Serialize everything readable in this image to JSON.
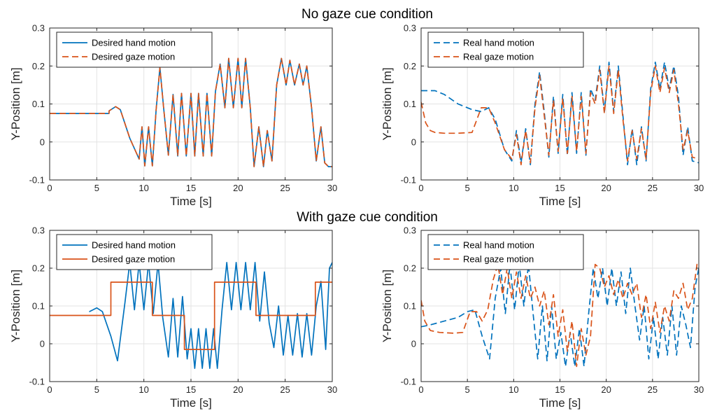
{
  "section_titles": {
    "top": "No gaze cue condition",
    "bottom": "With gaze cue condition"
  },
  "colors": {
    "hand": "#0072BD",
    "gaze": "#D95319"
  },
  "chart_data": [
    {
      "type": "line",
      "section": "top",
      "xlabel": "Time [s]",
      "ylabel": "Y-Position [m]",
      "xlim": [
        0,
        30
      ],
      "ylim": [
        -0.1,
        0.3
      ],
      "xticks": [
        "0",
        "5",
        "10",
        "15",
        "20",
        "25",
        "30"
      ],
      "yticks": [
        "-0.1",
        "0",
        "0.1",
        "0.2",
        "0.3"
      ],
      "grid": true,
      "legend_position": "top-left",
      "series": [
        {
          "name": "Desired hand motion",
          "style": "solid",
          "color": "#0072BD",
          "x": [
            0,
            6.3,
            6.31,
            7.0,
            7.5,
            8.5,
            9.5,
            9.8,
            10.1,
            10.5,
            10.9,
            11.3,
            11.7,
            12.1,
            12.6,
            13.1,
            13.6,
            14.0,
            14.5,
            15.0,
            15.4,
            15.8,
            16.3,
            16.7,
            17.2,
            17.6,
            18.1,
            18.6,
            19.0,
            19.5,
            20.0,
            20.4,
            20.8,
            21.3,
            21.7,
            22.2,
            22.7,
            23.1,
            23.6,
            24.1,
            24.6,
            25.1,
            25.5,
            26.0,
            26.5,
            26.9,
            27.3,
            27.8,
            28.3,
            28.8,
            29.2,
            29.6,
            30
          ],
          "y": [
            0.075,
            0.075,
            0.082,
            0.093,
            0.085,
            0.01,
            -0.045,
            0.04,
            -0.063,
            0.04,
            -0.063,
            0.085,
            0.196,
            0.09,
            -0.035,
            0.125,
            -0.037,
            0.128,
            -0.037,
            0.128,
            -0.037,
            0.128,
            -0.037,
            0.128,
            -0.037,
            0.133,
            0.205,
            0.09,
            0.22,
            0.09,
            0.22,
            0.09,
            0.22,
            0.09,
            -0.065,
            0.04,
            -0.065,
            0.03,
            -0.05,
            0.15,
            0.22,
            0.15,
            0.215,
            0.15,
            0.205,
            0.15,
            0.2,
            0.09,
            -0.05,
            0.04,
            -0.055,
            -0.065,
            -0.065
          ]
        },
        {
          "name": "Desired gaze motion",
          "style": "dashed",
          "color": "#D95319",
          "x": [
            0,
            6.3,
            6.31,
            7.0,
            7.5,
            8.5,
            9.5,
            9.8,
            10.1,
            10.5,
            10.9,
            11.3,
            11.7,
            12.1,
            12.6,
            13.1,
            13.6,
            14.0,
            14.5,
            15.0,
            15.4,
            15.8,
            16.3,
            16.7,
            17.2,
            17.6,
            18.1,
            18.6,
            19.0,
            19.5,
            20.0,
            20.4,
            20.8,
            21.3,
            21.7,
            22.2,
            22.7,
            23.1,
            23.6,
            24.1,
            24.6,
            25.1,
            25.5,
            26.0,
            26.5,
            26.9,
            27.3,
            27.8,
            28.3,
            28.8,
            29.2,
            29.6,
            30
          ],
          "y": [
            0.075,
            0.075,
            0.082,
            0.093,
            0.085,
            0.01,
            -0.045,
            0.04,
            -0.063,
            0.04,
            -0.063,
            0.085,
            0.196,
            0.09,
            -0.035,
            0.125,
            -0.037,
            0.128,
            -0.037,
            0.128,
            -0.037,
            0.128,
            -0.037,
            0.128,
            -0.037,
            0.133,
            0.205,
            0.09,
            0.22,
            0.09,
            0.22,
            0.09,
            0.22,
            0.09,
            -0.065,
            0.04,
            -0.065,
            0.03,
            -0.05,
            0.15,
            0.22,
            0.15,
            0.215,
            0.15,
            0.205,
            0.15,
            0.2,
            0.09,
            -0.05,
            0.04,
            -0.055,
            -0.065,
            -0.065
          ]
        }
      ]
    },
    {
      "type": "line",
      "section": "top",
      "xlabel": "Time [s]",
      "ylabel": "Y-Position [m]",
      "xlim": [
        0,
        30
      ],
      "ylim": [
        -0.1,
        0.3
      ],
      "xticks": [
        "0",
        "5",
        "10",
        "15",
        "20",
        "25",
        "30"
      ],
      "yticks": [
        "-0.1",
        "0",
        "0.1",
        "0.2",
        "0.3"
      ],
      "grid": true,
      "legend_position": "top-left",
      "series": [
        {
          "name": "Real hand motion",
          "style": "dashed",
          "color": "#0072BD",
          "x": [
            0,
            1.5,
            2.5,
            4.0,
            5.5,
            6.5,
            7.3,
            8.0,
            9.0,
            9.8,
            10.3,
            10.8,
            11.3,
            11.8,
            12.3,
            12.8,
            13.3,
            13.8,
            14.3,
            14.8,
            15.3,
            15.8,
            16.3,
            16.8,
            17.3,
            17.8,
            18.3,
            18.8,
            19.3,
            19.8,
            20.3,
            20.8,
            21.3,
            21.8,
            22.3,
            22.8,
            23.3,
            23.8,
            24.3,
            24.8,
            25.3,
            25.8,
            26.3,
            26.8,
            27.3,
            27.8,
            28.3,
            28.8,
            29.3,
            30
          ],
          "y": [
            0.135,
            0.135,
            0.125,
            0.1,
            0.085,
            0.08,
            0.09,
            0.06,
            -0.02,
            -0.05,
            0.03,
            -0.055,
            0.035,
            -0.06,
            0.1,
            0.185,
            0.08,
            -0.04,
            0.12,
            -0.03,
            0.125,
            -0.035,
            0.13,
            -0.03,
            0.13,
            -0.035,
            0.14,
            0.11,
            0.2,
            0.08,
            0.21,
            0.08,
            0.2,
            0.07,
            -0.06,
            0.035,
            -0.06,
            0.04,
            -0.05,
            0.14,
            0.21,
            0.14,
            0.21,
            0.14,
            0.2,
            0.12,
            -0.035,
            0.04,
            -0.05,
            -0.055
          ]
        },
        {
          "name": "Real gaze motion",
          "style": "dashed",
          "color": "#D95319",
          "x": [
            0,
            0.5,
            1.0,
            1.5,
            2.5,
            4.0,
            5.5,
            6.5,
            7.3,
            8.0,
            9.0,
            9.8,
            10.3,
            10.8,
            11.3,
            11.8,
            12.3,
            12.8,
            13.3,
            13.8,
            14.3,
            14.8,
            15.3,
            15.8,
            16.3,
            16.8,
            17.3,
            17.8,
            18.3,
            18.8,
            19.3,
            19.8,
            20.3,
            20.8,
            21.3,
            21.8,
            22.3,
            22.8,
            23.3,
            23.8,
            24.3,
            24.8,
            25.3,
            25.8,
            26.3,
            26.8,
            27.3,
            27.8,
            28.3,
            28.8,
            29.3,
            30
          ],
          "y": [
            0.105,
            0.05,
            0.03,
            0.025,
            0.023,
            0.023,
            0.025,
            0.09,
            0.09,
            0.05,
            -0.02,
            -0.045,
            0.02,
            -0.06,
            0.03,
            -0.055,
            0.09,
            0.175,
            0.07,
            -0.035,
            0.11,
            -0.025,
            0.115,
            -0.03,
            0.12,
            -0.025,
            0.12,
            -0.03,
            0.13,
            0.1,
            0.19,
            0.075,
            0.2,
            0.075,
            0.19,
            0.06,
            -0.05,
            0.03,
            -0.045,
            0.035,
            -0.045,
            0.13,
            0.2,
            0.13,
            0.195,
            0.13,
            0.19,
            0.1,
            -0.02,
            0.03,
            -0.04,
            -0.045
          ]
        }
      ]
    },
    {
      "type": "line",
      "section": "bottom",
      "xlabel": "Time [s]",
      "ylabel": "Y-Position [m]",
      "xlim": [
        0,
        30
      ],
      "ylim": [
        -0.1,
        0.3
      ],
      "xticks": [
        "0",
        "5",
        "10",
        "15",
        "20",
        "25",
        "30"
      ],
      "yticks": [
        "-0.1",
        "0",
        "0.1",
        "0.2",
        "0.3"
      ],
      "grid": true,
      "legend_position": "top-left",
      "series": [
        {
          "name": "Desired hand motion",
          "style": "solid",
          "color": "#0072BD",
          "x": [
            4.2,
            4.21,
            5.0,
            5.6,
            6.5,
            7.2,
            8.0,
            8.5,
            9.0,
            9.5,
            10.0,
            10.5,
            11.0,
            11.5,
            12.0,
            12.6,
            13.1,
            13.6,
            14.1,
            14.6,
            15.0,
            15.4,
            15.8,
            16.2,
            16.6,
            17.0,
            17.4,
            17.8,
            18.3,
            18.8,
            19.3,
            19.8,
            20.3,
            20.8,
            21.3,
            21.8,
            22.3,
            22.8,
            23.3,
            23.8,
            24.3,
            24.8,
            25.3,
            25.8,
            26.3,
            26.8,
            27.3,
            27.8,
            28.3,
            28.8,
            29.3,
            29.7,
            30
          ],
          "y": [
            0.085,
            0.085,
            0.095,
            0.085,
            0.02,
            -0.045,
            0.11,
            0.215,
            0.09,
            0.215,
            0.09,
            0.215,
            0.08,
            0.215,
            0.07,
            -0.035,
            0.12,
            -0.035,
            0.125,
            -0.04,
            0.04,
            -0.065,
            0.04,
            -0.065,
            0.04,
            -0.065,
            0.04,
            -0.065,
            0.09,
            0.215,
            0.09,
            0.215,
            0.09,
            0.215,
            0.09,
            0.215,
            0.06,
            0.19,
            0.055,
            -0.01,
            0.1,
            -0.03,
            0.075,
            -0.03,
            0.08,
            -0.035,
            0.08,
            -0.03,
            0.1,
            0.165,
            -0.015,
            0.2,
            0.215
          ]
        },
        {
          "name": "Desired gaze motion",
          "style": "solid",
          "color": "#D95319",
          "x": [
            0,
            6.5,
            6.5,
            10.9,
            10.9,
            14.3,
            14.3,
            17.5,
            17.5,
            21.9,
            21.9,
            28.2,
            28.2,
            30
          ],
          "y": [
            0.075,
            0.075,
            0.163,
            0.163,
            0.075,
            0.075,
            -0.015,
            -0.015,
            0.163,
            0.163,
            0.075,
            0.075,
            0.163,
            0.163
          ]
        }
      ]
    },
    {
      "type": "line",
      "section": "bottom",
      "xlabel": "Time [s]",
      "ylabel": "Y-Position [m]",
      "xlim": [
        0,
        30
      ],
      "ylim": [
        -0.1,
        0.3
      ],
      "xticks": [
        "0",
        "5",
        "10",
        "15",
        "20",
        "25",
        "30"
      ],
      "yticks": [
        "-0.1",
        "0",
        "0.1",
        "0.2",
        "0.3"
      ],
      "grid": true,
      "legend_position": "top-left",
      "series": [
        {
          "name": "Real hand motion",
          "style": "dashed",
          "color": "#0072BD",
          "x": [
            0,
            1.0,
            2.5,
            4.0,
            5.0,
            5.8,
            6.6,
            7.4,
            8.0,
            8.6,
            9.1,
            9.6,
            10.1,
            10.6,
            11.1,
            11.6,
            12.1,
            12.6,
            13.1,
            13.6,
            14.1,
            14.6,
            15.1,
            15.6,
            16.1,
            16.6,
            17.1,
            17.6,
            18.1,
            18.6,
            19.1,
            19.6,
            20.1,
            20.6,
            21.1,
            21.6,
            22.1,
            22.6,
            23.1,
            23.6,
            24.1,
            24.6,
            25.1,
            25.6,
            26.1,
            26.6,
            27.1,
            27.6,
            28.1,
            28.6,
            29.1,
            29.6,
            30
          ],
          "y": [
            0.045,
            0.05,
            0.06,
            0.07,
            0.085,
            0.09,
            0.02,
            -0.04,
            0.12,
            0.2,
            0.08,
            0.21,
            0.09,
            0.21,
            0.1,
            0.21,
            0.08,
            -0.04,
            0.1,
            -0.045,
            0.1,
            -0.04,
            0.03,
            -0.06,
            0.03,
            -0.06,
            0.04,
            -0.06,
            0.08,
            0.2,
            0.12,
            0.2,
            0.1,
            0.2,
            0.1,
            0.19,
            0.08,
            0.2,
            0.1,
            0.01,
            0.1,
            -0.04,
            0.07,
            -0.04,
            0.07,
            -0.03,
            0.1,
            -0.03,
            0.1,
            0.05,
            -0.01,
            0.15,
            0.2
          ]
        },
        {
          "name": "Real gaze motion",
          "style": "dashed",
          "color": "#D95319",
          "x": [
            0,
            0.4,
            1.0,
            2.0,
            3.5,
            4.5,
            5.3,
            6.0,
            6.6,
            7.2,
            7.8,
            8.3,
            8.8,
            9.3,
            9.8,
            10.3,
            10.8,
            11.3,
            11.8,
            12.3,
            12.8,
            13.3,
            13.8,
            14.3,
            14.8,
            15.3,
            15.8,
            16.3,
            16.8,
            17.3,
            17.8,
            18.3,
            18.8,
            19.3,
            19.8,
            20.3,
            20.8,
            21.3,
            21.8,
            22.3,
            22.8,
            23.3,
            23.8,
            24.3,
            24.8,
            25.3,
            25.8,
            26.3,
            26.8,
            27.3,
            27.8,
            28.3,
            28.8,
            29.3,
            29.8,
            30
          ],
          "y": [
            0.115,
            0.06,
            0.035,
            0.03,
            0.028,
            0.03,
            0.085,
            0.085,
            0.06,
            0.09,
            0.17,
            0.21,
            0.13,
            0.2,
            0.12,
            0.19,
            0.12,
            0.18,
            0.12,
            0.15,
            0.1,
            0.14,
            0.05,
            0.13,
            0.02,
            0.09,
            -0.02,
            0.06,
            -0.06,
            0.04,
            -0.03,
            0.02,
            0.21,
            0.2,
            0.15,
            0.18,
            0.13,
            0.17,
            0.12,
            0.16,
            0.13,
            0.16,
            0.07,
            0.13,
            0.04,
            0.11,
            0.03,
            0.1,
            0.06,
            0.14,
            0.12,
            0.16,
            0.09,
            0.12,
            0.21,
            0.2
          ]
        }
      ]
    }
  ]
}
